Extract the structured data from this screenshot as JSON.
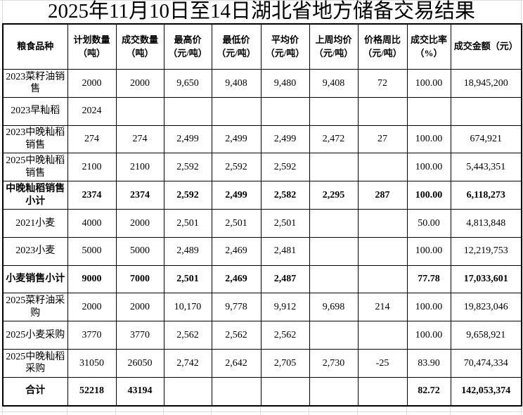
{
  "title": "2025年11月10日至14日湖北省地方储备交易结果",
  "table": {
    "columns": [
      {
        "line1": "粮食品种",
        "line2": ""
      },
      {
        "line1": "计划数量",
        "line2": "（吨）"
      },
      {
        "line1": "成交数量",
        "line2": "（吨）"
      },
      {
        "line1": "最高价",
        "line2": "（元/吨）"
      },
      {
        "line1": "最低价",
        "line2": "（元/吨）"
      },
      {
        "line1": "平均价",
        "line2": "（元/吨）"
      },
      {
        "line1": "上周均价",
        "line2": "（元/吨）"
      },
      {
        "line1": "价格周比",
        "line2": "（元/吨）"
      },
      {
        "line1": "成交比率",
        "line2": "（%）"
      },
      {
        "line1": "成交金额（元）",
        "line2": ""
      }
    ],
    "rows": [
      {
        "label": "2023菜籽油销售",
        "bold": false,
        "values": [
          "2000",
          "2000",
          "9,650",
          "9,408",
          "9,480",
          "9,408",
          "72",
          "100.00",
          "18,945,200"
        ]
      },
      {
        "label": "2023早籼稻",
        "bold": false,
        "values": [
          "2024",
          "",
          "",
          "",
          "",
          "",
          "",
          "",
          ""
        ]
      },
      {
        "label": "2023中晚籼稻销售",
        "bold": false,
        "values": [
          "274",
          "274",
          "2,499",
          "2,499",
          "2,499",
          "2,472",
          "27",
          "100.00",
          "674,921"
        ]
      },
      {
        "label": "2025中晚籼稻销售",
        "bold": false,
        "values": [
          "2100",
          "2100",
          "2,592",
          "2,592",
          "2,592",
          "",
          "",
          "100.00",
          "5,443,351"
        ]
      },
      {
        "label": "中晚籼稻销售小计",
        "bold": true,
        "values": [
          "2374",
          "2374",
          "2,592",
          "2,499",
          "2,582",
          "2,295",
          "287",
          "100.00",
          "6,118,273"
        ]
      },
      {
        "label": "2021小麦",
        "bold": false,
        "values": [
          "4000",
          "2000",
          "2,501",
          "2,501",
          "2,501",
          "",
          "",
          "50.00",
          "4,813,848"
        ]
      },
      {
        "label": "2023小麦",
        "bold": false,
        "values": [
          "5000",
          "5000",
          "2,489",
          "2,469",
          "2,481",
          "",
          "",
          "100.00",
          "12,219,753"
        ]
      },
      {
        "label": "小麦销售小计",
        "bold": true,
        "values": [
          "9000",
          "7000",
          "2,501",
          "2,469",
          "2,487",
          "",
          "",
          "77.78",
          "17,033,601"
        ]
      },
      {
        "label": "2025菜籽油采购",
        "bold": false,
        "values": [
          "2000",
          "2000",
          "10,170",
          "9,778",
          "9,912",
          "9,698",
          "214",
          "100.00",
          "19,823,046"
        ]
      },
      {
        "label": "2025小麦采购",
        "bold": false,
        "values": [
          "3770",
          "3770",
          "2,562",
          "2,562",
          "2,562",
          "",
          "",
          "100.00",
          "9,658,921"
        ]
      },
      {
        "label": "2025中晚籼稻采购",
        "bold": false,
        "values": [
          "31050",
          "26050",
          "2,742",
          "2,642",
          "2,705",
          "2,730",
          "-25",
          "83.90",
          "70,474,334"
        ]
      },
      {
        "label": "合计",
        "bold": true,
        "values": [
          "52218",
          "43194",
          "",
          "",
          "",
          "",
          "",
          "82.72",
          "142,053,374"
        ]
      }
    ]
  }
}
